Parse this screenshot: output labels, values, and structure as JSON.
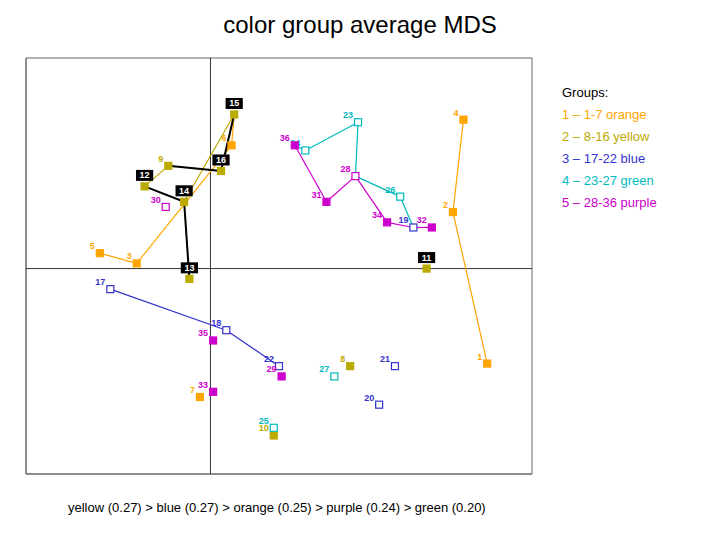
{
  "chart_data": {
    "type": "scatter",
    "title": "color group average MDS",
    "subtitle": "yellow (0.27) > blue (0.27) > orange (0.25) > purple (0.24) > green (0.20)",
    "annotations": [
      "Groups:"
    ],
    "xlim": [
      -0.7,
      1.22
    ],
    "ylim": [
      -0.8,
      0.82
    ],
    "xticks": [
      0
    ],
    "yticks": [
      0
    ],
    "grid": true,
    "tick_labels": false,
    "marker": "square",
    "boxed_labels": [
      11,
      12,
      13,
      14,
      15,
      16
    ],
    "series": [
      {
        "name": "1 – 1-7 orange",
        "color": "#FFA500",
        "labels": [
          1,
          2,
          3,
          4,
          5,
          6,
          7
        ],
        "x": [
          1.05,
          0.92,
          -0.28,
          0.96,
          -0.42,
          0.08,
          -0.04
        ],
        "values": [
          -0.37,
          0.22,
          0.02,
          0.58,
          0.06,
          0.48,
          -0.5
        ],
        "filled": [
          1,
          2,
          3,
          4,
          5,
          6,
          7
        ]
      },
      {
        "name": "2 – 8-16 yellow",
        "color": "#BBAA00",
        "labels": [
          8,
          9,
          10,
          11,
          12,
          13,
          14,
          15,
          16
        ],
        "x": [
          0.53,
          -0.16,
          0.24,
          0.82,
          -0.25,
          -0.08,
          -0.1,
          0.09,
          0.04
        ],
        "values": [
          -0.38,
          0.4,
          -0.65,
          0.0,
          0.32,
          -0.04,
          0.26,
          0.6,
          0.38
        ],
        "filled": [
          8,
          9,
          10,
          11,
          12,
          13,
          14,
          15,
          16
        ]
      },
      {
        "name": "3 – 17-22 blue",
        "color": "#3333CC",
        "labels": [
          17,
          18,
          19,
          20,
          21,
          22
        ],
        "x": [
          -0.38,
          0.06,
          0.77,
          0.64,
          0.7,
          0.26
        ],
        "values": [
          -0.08,
          -0.24,
          0.16,
          -0.53,
          -0.38,
          -0.38
        ],
        "filled": []
      },
      {
        "name": "4 – 23-27 green",
        "color": "#00BBBB",
        "labels": [
          23,
          24,
          25,
          26,
          27
        ],
        "x": [
          0.56,
          0.36,
          0.24,
          0.72,
          0.47
        ],
        "values": [
          0.57,
          0.46,
          -0.62,
          0.28,
          -0.42
        ],
        "filled": []
      },
      {
        "name": "5 – 28-36 purple",
        "color": "#CC00CC",
        "labels": [
          28,
          29,
          30,
          31,
          32,
          33,
          34,
          35,
          36
        ],
        "x": [
          0.55,
          0.27,
          -0.17,
          0.44,
          0.84,
          0.01,
          0.67,
          0.01,
          0.32
        ],
        "values": [
          0.36,
          -0.42,
          0.24,
          0.26,
          0.16,
          -0.48,
          0.18,
          -0.28,
          0.48
        ],
        "filled": [
          29,
          31,
          32,
          33,
          34,
          35,
          36
        ]
      }
    ],
    "links": [
      {
        "color": "#FFA500",
        "line_style": "solid",
        "pairs": [
          [
            4,
            2
          ],
          [
            2,
            1
          ],
          [
            5,
            3
          ],
          [
            3,
            6
          ],
          [
            6,
            15
          ]
        ]
      },
      {
        "color": "#BBAA00",
        "line_style": "solid",
        "pairs": [
          [
            12,
            9
          ],
          [
            9,
            16
          ],
          [
            16,
            15
          ],
          [
            15,
            14
          ],
          [
            14,
            13
          ]
        ]
      },
      {
        "color": "#3333CC",
        "line_style": "solid",
        "pairs": [
          [
            17,
            18
          ],
          [
            18,
            22
          ]
        ]
      },
      {
        "color": "#00BBBB",
        "line_style": "solid",
        "pairs": [
          [
            36,
            24
          ],
          [
            24,
            23
          ],
          [
            23,
            28
          ],
          [
            28,
            26
          ],
          [
            26,
            19
          ]
        ]
      },
      {
        "color": "#CC00CC",
        "line_style": "solid",
        "pairs": [
          [
            36,
            31
          ],
          [
            31,
            28
          ],
          [
            28,
            34
          ],
          [
            34,
            19
          ],
          [
            19,
            32
          ]
        ]
      },
      {
        "color": "black",
        "line_style": "bold",
        "pairs": [
          [
            12,
            14
          ],
          [
            14,
            13
          ],
          [
            15,
            16
          ],
          [
            9,
            16
          ]
        ]
      }
    ]
  }
}
